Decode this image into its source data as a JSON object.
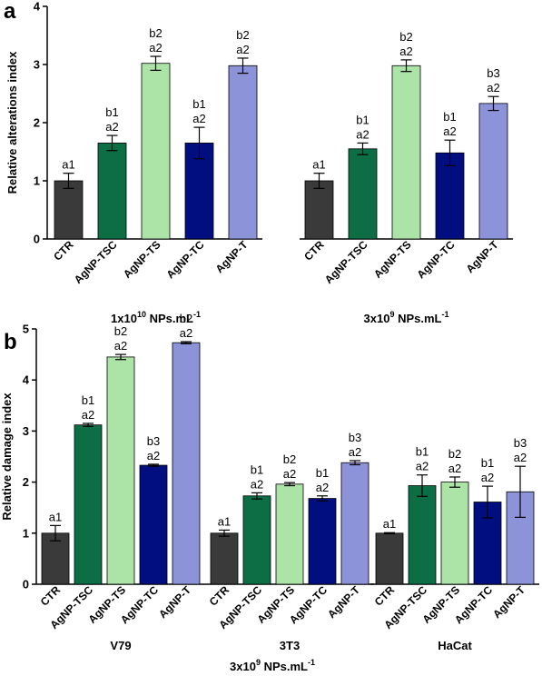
{
  "chart_data": [
    {
      "panel_label": "a",
      "type": "bar",
      "ylabel": "Relative alterations index",
      "ylim": [
        0,
        4
      ],
      "yticks": [
        "0",
        "1",
        "2",
        "3",
        "4"
      ],
      "groups": [
        {
          "title_main": "1x10",
          "title_exp": "10",
          "title_unit": " NPs.mL",
          "title_unit_exp": "-1",
          "categories": [
            "CTR",
            "AgNP-TSC",
            "AgNP-TS",
            "AgNP-TC",
            "AgNP-T"
          ],
          "values": [
            1.0,
            1.65,
            3.02,
            1.65,
            2.98
          ],
          "errors": [
            0.13,
            0.13,
            0.12,
            0.27,
            0.13
          ],
          "labels": [
            "a1",
            "b1\na2",
            "b2\na2",
            "b1\na2",
            "b2\na2"
          ]
        },
        {
          "title_main": "3x10",
          "title_exp": "9",
          "title_unit": " NPs.mL",
          "title_unit_exp": "-1",
          "categories": [
            "CTR",
            "AgNP-TSC",
            "AgNP-TS",
            "AgNP-TC",
            "AgNP-T"
          ],
          "values": [
            1.0,
            1.55,
            2.98,
            1.48,
            2.33
          ],
          "errors": [
            0.13,
            0.1,
            0.1,
            0.22,
            0.12
          ],
          "labels": [
            "a1",
            "b1\na2",
            "b2\na2",
            "b1\na2",
            "b3\na2"
          ]
        }
      ]
    },
    {
      "panel_label": "b",
      "type": "bar",
      "ylabel": "Relative damage index",
      "ylim": [
        0,
        5
      ],
      "yticks": [
        "0",
        "1",
        "2",
        "3",
        "4",
        "5"
      ],
      "bottom_title_main": "3x10",
      "bottom_title_exp": "9",
      "bottom_title_unit": " NPs.mL",
      "bottom_title_unit_exp": "-1",
      "groups": [
        {
          "title": "V79",
          "categories": [
            "CTR",
            "AgNP-TSC",
            "AgNP-TS",
            "AgNP-TC",
            "AgNP-T"
          ],
          "values": [
            1.0,
            3.12,
            4.45,
            2.33,
            4.73
          ],
          "errors": [
            0.15,
            0.03,
            0.05,
            0.02,
            0.02
          ],
          "labels": [
            "a1",
            "b1\na2",
            "b2\na2",
            "b3\na2",
            "b2\na2"
          ]
        },
        {
          "title": "3T3",
          "categories": [
            "CTR",
            "AgNP-TSC",
            "AgNP-TS",
            "AgNP-TC",
            "AgNP-T"
          ],
          "values": [
            1.0,
            1.73,
            1.96,
            1.68,
            2.38
          ],
          "errors": [
            0.06,
            0.06,
            0.03,
            0.05,
            0.04
          ],
          "labels": [
            "a1",
            "b1\na2",
            "b2\na2",
            "b1\na2",
            "b3\na2"
          ]
        },
        {
          "title": "HaCat",
          "categories": [
            "CTR",
            "AgNP-TSC",
            "AgNP-TS",
            "AgNP-TC",
            "AgNP-T"
          ],
          "values": [
            1.0,
            1.93,
            2.0,
            1.61,
            1.81
          ],
          "errors": [
            0.01,
            0.21,
            0.1,
            0.31,
            0.5
          ],
          "labels": [
            "a1",
            "b1\na2",
            "b2\na2",
            "b1\na2",
            "b3\na2"
          ]
        }
      ]
    }
  ],
  "colors": [
    "#3a3a3a",
    "#0d6e46",
    "#ace3a6",
    "#000e80",
    "#8d93d8"
  ]
}
